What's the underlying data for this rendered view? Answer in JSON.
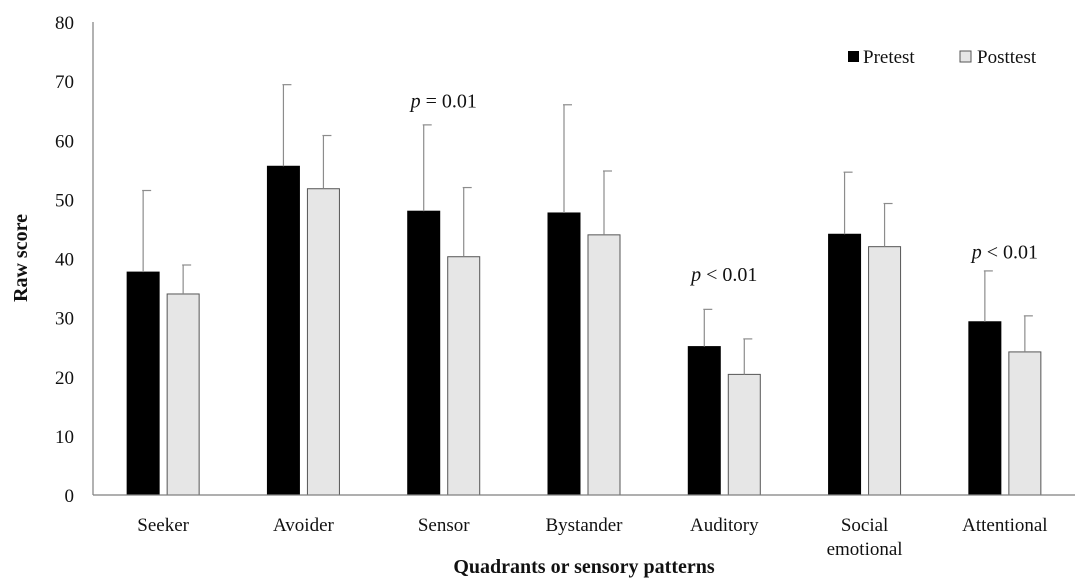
{
  "chart_data": {
    "type": "bar",
    "title": "",
    "xlabel": "Quadrants or sensory patterns",
    "ylabel": "Raw score",
    "ylim": [
      0,
      80
    ],
    "yticks": [
      0,
      10,
      20,
      30,
      40,
      50,
      60,
      70,
      80
    ],
    "categories": [
      [
        "Seeker"
      ],
      [
        "Avoider"
      ],
      [
        "Sensor"
      ],
      [
        "Bystander"
      ],
      [
        "Auditory"
      ],
      [
        "Social",
        "emotional"
      ],
      [
        "Attentional"
      ]
    ],
    "series": [
      {
        "name": "Pretest",
        "color": "#000000",
        "values": [
          37.7,
          55.6,
          48.0,
          47.7,
          25.1,
          44.1,
          29.3
        ],
        "error_upper": [
          51.5,
          69.4,
          62.6,
          66.0,
          31.4,
          54.6,
          37.9
        ]
      },
      {
        "name": "Posttest",
        "color": "#e6e6e6",
        "values": [
          34.0,
          51.8,
          40.3,
          44.0,
          20.4,
          42.0,
          24.2
        ],
        "error_upper": [
          38.9,
          60.8,
          52.0,
          54.8,
          26.4,
          49.3,
          30.3
        ]
      }
    ],
    "annotations": [
      {
        "category_index": 2,
        "prefix": "p",
        "text": " = 0.01",
        "y": 65.5
      },
      {
        "category_index": 4,
        "prefix": "p",
        "text": " < 0.01",
        "y": 36.2
      },
      {
        "category_index": 6,
        "prefix": "p",
        "text": " < 0.01",
        "y": 40.0
      }
    ],
    "grid": false,
    "legend_position": "top-right"
  }
}
